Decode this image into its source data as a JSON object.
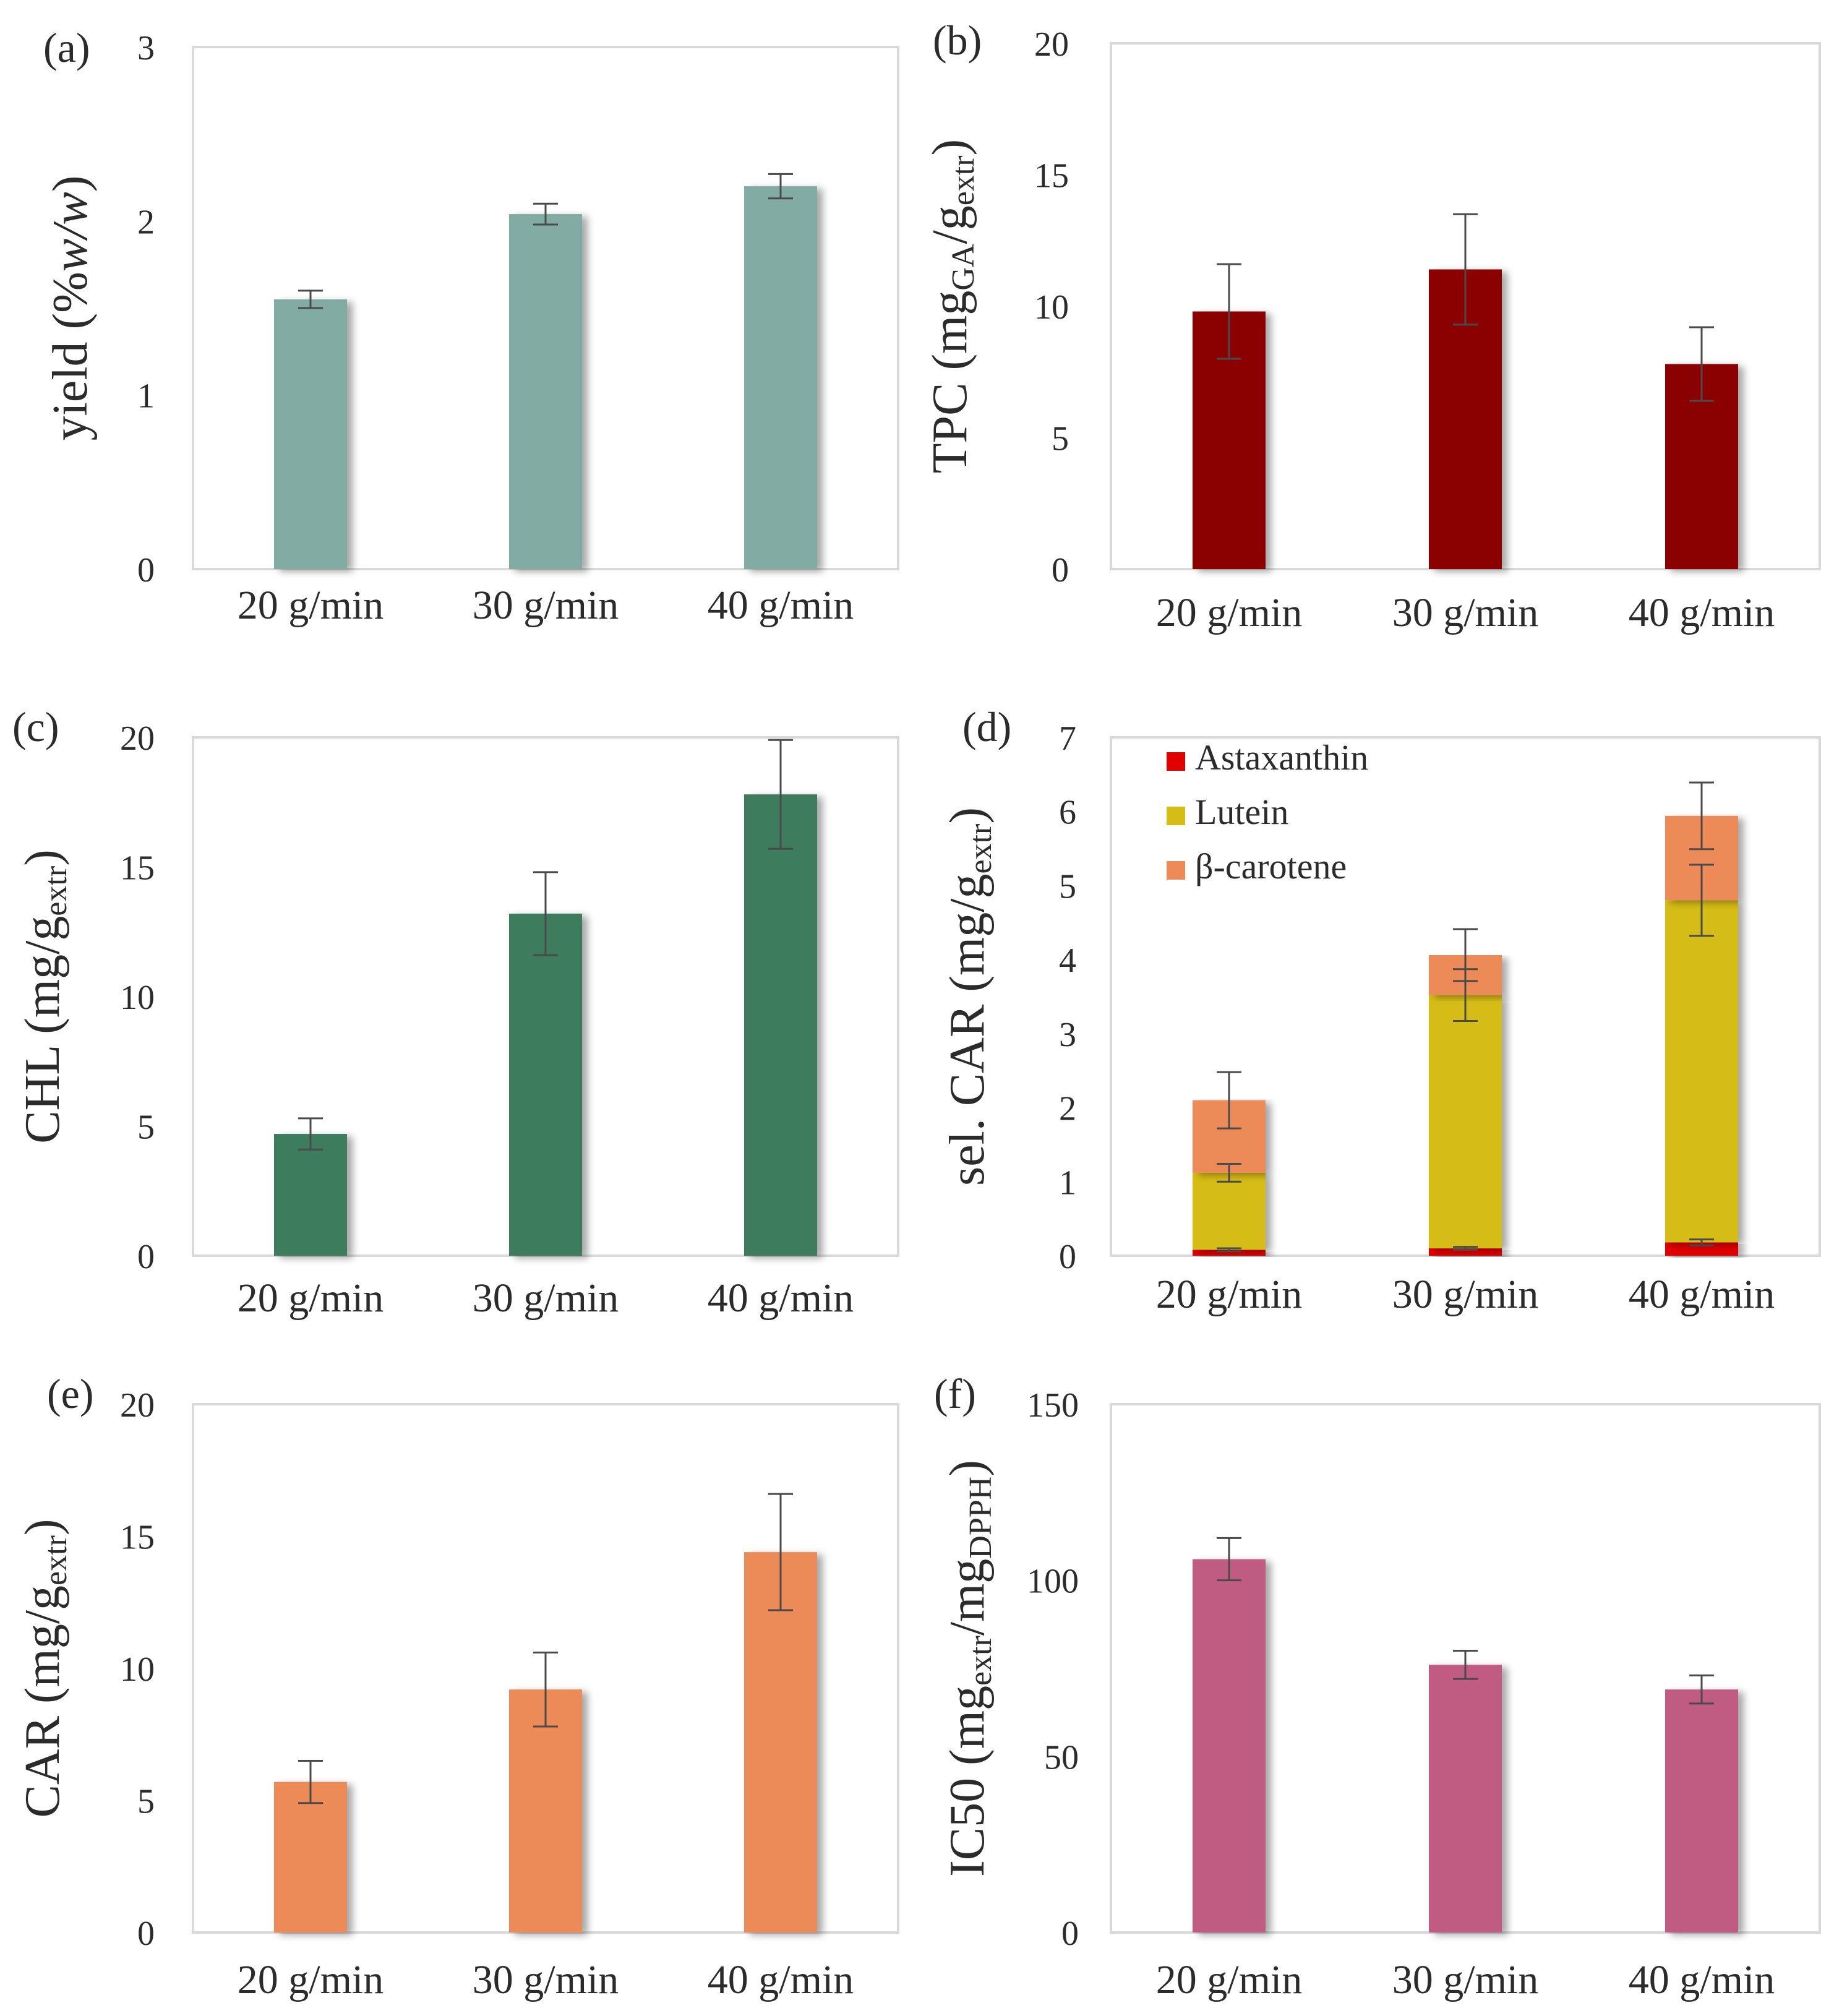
{
  "chart_data": [
    {
      "id": "a",
      "type": "bar",
      "panel_label": "(a)",
      "ylabel": [
        {
          "t": "yield (%"
        },
        {
          "t": "w/w",
          "italic": true
        },
        {
          "t": ")"
        }
      ],
      "ylim": [
        0,
        3
      ],
      "yticks": [
        0,
        1,
        2,
        3
      ],
      "categories": [
        "20 g/min",
        "30 g/min",
        "40 g/min"
      ],
      "values": [
        1.55,
        2.04,
        2.2
      ],
      "errors": [
        0.05,
        0.06,
        0.07
      ],
      "color": "#82aba4",
      "grid": false
    },
    {
      "id": "b",
      "type": "bar",
      "panel_label": "(b)",
      "ylabel": [
        {
          "t": "TPC (mg"
        },
        {
          "t": "GA",
          "sub": true
        },
        {
          "t": "/g"
        },
        {
          "t": "extr",
          "sub": true
        },
        {
          "t": ")"
        }
      ],
      "ylim": [
        0,
        20
      ],
      "yticks": [
        0,
        5,
        10,
        15,
        20
      ],
      "categories": [
        "20 g/min",
        "30 g/min",
        "40 g/min"
      ],
      "values": [
        9.8,
        11.4,
        7.8
      ],
      "errors": [
        1.8,
        2.1,
        1.4
      ],
      "color": "#8b0000",
      "grid": false
    },
    {
      "id": "c",
      "type": "bar",
      "panel_label": "(c)",
      "ylabel": [
        {
          "t": "CHL (mg/g"
        },
        {
          "t": "extr",
          "sub": true
        },
        {
          "t": ")"
        }
      ],
      "ylim": [
        0,
        20
      ],
      "yticks": [
        0,
        5,
        10,
        15,
        20
      ],
      "categories": [
        "20 g/min",
        "30 g/min",
        "40 g/min"
      ],
      "values": [
        4.7,
        13.2,
        17.8
      ],
      "errors": [
        0.6,
        1.6,
        2.1
      ],
      "color": "#3c7b5c",
      "grid": false
    },
    {
      "id": "d",
      "type": "stacked-bar",
      "panel_label": "(d)",
      "ylabel": [
        {
          "t": "sel. CAR (mg/g"
        },
        {
          "t": "extr",
          "sub": true
        },
        {
          "t": ")"
        }
      ],
      "ylim": [
        0,
        7
      ],
      "yticks": [
        0,
        1,
        2,
        3,
        4,
        5,
        6,
        7
      ],
      "categories": [
        "20 g/min",
        "30 g/min",
        "40 g/min"
      ],
      "series": [
        {
          "name": "Astaxanthin",
          "color": "#e00000",
          "values": [
            0.08,
            0.1,
            0.18
          ],
          "errors": [
            0.02,
            0.02,
            0.04
          ]
        },
        {
          "name": "Lutein",
          "color": "#d6bc17",
          "values": [
            1.04,
            3.42,
            4.62
          ],
          "errors": [
            0.12,
            0.35,
            0.48
          ]
        },
        {
          "name": "β-carotene",
          "color": "#ec8b58",
          "values": [
            0.98,
            0.54,
            1.14
          ],
          "errors": [
            0.38,
            0.35,
            0.45
          ]
        }
      ],
      "legend_position": "top-left",
      "grid": false
    },
    {
      "id": "e",
      "type": "bar",
      "panel_label": "(e)",
      "ylabel": [
        {
          "t": "CAR (mg/g"
        },
        {
          "t": "extr",
          "sub": true
        },
        {
          "t": ")"
        }
      ],
      "ylim": [
        0,
        20
      ],
      "yticks": [
        0,
        5,
        10,
        15,
        20
      ],
      "categories": [
        "20 g/min",
        "30 g/min",
        "40 g/min"
      ],
      "values": [
        5.7,
        9.2,
        14.4
      ],
      "errors": [
        0.8,
        1.4,
        2.2
      ],
      "color": "#ec8b58",
      "grid": false
    },
    {
      "id": "f",
      "type": "bar",
      "panel_label": "(f)",
      "ylabel": [
        {
          "t": "IC50 (mg"
        },
        {
          "t": "extr",
          "sub": true
        },
        {
          "t": "/mg"
        },
        {
          "t": "DPPH",
          "sub": true
        },
        {
          "t": ")"
        }
      ],
      "ylim": [
        0,
        150
      ],
      "yticks": [
        0,
        50,
        100,
        150
      ],
      "categories": [
        "20 g/min",
        "30 g/min",
        "40 g/min"
      ],
      "values": [
        106,
        76,
        69
      ],
      "errors": [
        6,
        4,
        4
      ],
      "color": "#c05c82",
      "grid": false
    }
  ]
}
